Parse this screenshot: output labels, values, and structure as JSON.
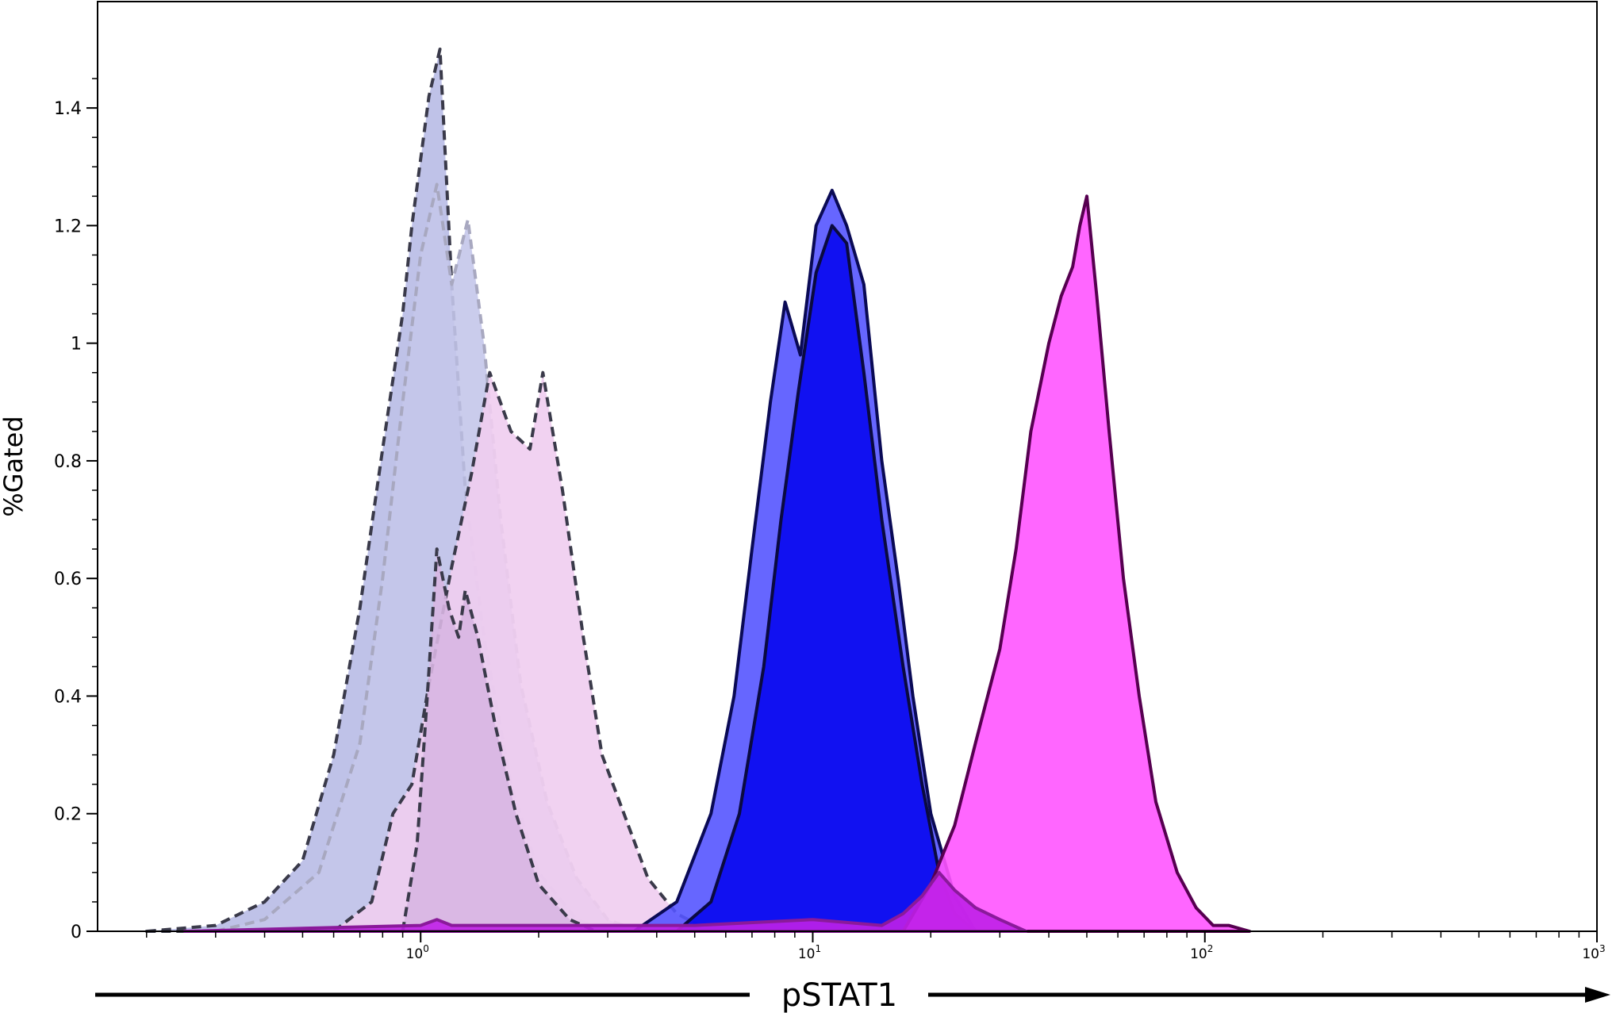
{
  "chart_data": {
    "type": "area",
    "xlabel": "pSTAT1",
    "ylabel": "%Gated",
    "x_scale": "log",
    "xlim": [
      0.15,
      1000
    ],
    "ylim": [
      0,
      1.5
    ],
    "x_ticks": [
      {
        "value": 1,
        "base": "10",
        "exp": "0"
      },
      {
        "value": 10,
        "base": "10",
        "exp": "1"
      },
      {
        "value": 100,
        "base": "10",
        "exp": "2"
      },
      {
        "value": 1000,
        "base": "10",
        "exp": "3"
      }
    ],
    "y_ticks": [
      {
        "value": 0,
        "label": "0"
      },
      {
        "value": 0.2,
        "label": "0.2"
      },
      {
        "value": 0.4,
        "label": "0.4"
      },
      {
        "value": 0.6,
        "label": "0.6"
      },
      {
        "value": 0.8,
        "label": "0.8"
      },
      {
        "value": 1.0,
        "label": "1"
      },
      {
        "value": 1.2,
        "label": "1.2"
      },
      {
        "value": 1.4,
        "label": "1.4"
      }
    ],
    "grid": false,
    "legend": "none",
    "series": [
      {
        "fill": "#b8bbe6",
        "stroke": "#3a3a4a",
        "dashed": true,
        "points": [
          [
            0.2,
            0
          ],
          [
            0.3,
            0.01
          ],
          [
            0.4,
            0.05
          ],
          [
            0.5,
            0.12
          ],
          [
            0.6,
            0.3
          ],
          [
            0.7,
            0.55
          ],
          [
            0.8,
            0.82
          ],
          [
            0.9,
            1.05
          ],
          [
            0.95,
            1.2
          ],
          [
            1.05,
            1.42
          ],
          [
            1.12,
            1.5
          ],
          [
            1.2,
            1.1
          ],
          [
            1.3,
            0.75
          ],
          [
            1.45,
            0.5
          ],
          [
            1.7,
            0.25
          ],
          [
            2.0,
            0.1
          ],
          [
            2.5,
            0.02
          ],
          [
            3.0,
            0
          ]
        ]
      },
      {
        "fill": "#c4c6ea",
        "stroke": "#a8a8c0",
        "dashed": true,
        "points": [
          [
            0.3,
            0
          ],
          [
            0.4,
            0.02
          ],
          [
            0.55,
            0.1
          ],
          [
            0.7,
            0.32
          ],
          [
            0.8,
            0.6
          ],
          [
            0.9,
            0.9
          ],
          [
            1.0,
            1.15
          ],
          [
            1.1,
            1.27
          ],
          [
            1.2,
            1.1
          ],
          [
            1.32,
            1.21
          ],
          [
            1.45,
            1.0
          ],
          [
            1.6,
            0.7
          ],
          [
            1.8,
            0.42
          ],
          [
            2.1,
            0.22
          ],
          [
            2.5,
            0.09
          ],
          [
            3.0,
            0.02
          ],
          [
            3.6,
            0
          ]
        ]
      },
      {
        "fill": "#efcdef",
        "stroke": "#3a3a4a",
        "dashed": true,
        "points": [
          [
            0.6,
            0
          ],
          [
            0.75,
            0.05
          ],
          [
            0.85,
            0.2
          ],
          [
            0.95,
            0.25
          ],
          [
            1.05,
            0.42
          ],
          [
            1.2,
            0.62
          ],
          [
            1.35,
            0.78
          ],
          [
            1.5,
            0.95
          ],
          [
            1.7,
            0.85
          ],
          [
            1.9,
            0.82
          ],
          [
            2.05,
            0.95
          ],
          [
            2.3,
            0.75
          ],
          [
            2.6,
            0.5
          ],
          [
            2.9,
            0.3
          ],
          [
            3.3,
            0.2
          ],
          [
            3.8,
            0.09
          ],
          [
            4.5,
            0.03
          ],
          [
            5.5,
            0
          ]
        ]
      },
      {
        "fill": "#d8b6e2",
        "stroke": "#3a3a4a",
        "dashed": true,
        "points": [
          [
            0.9,
            0
          ],
          [
            0.98,
            0.15
          ],
          [
            1.04,
            0.4
          ],
          [
            1.1,
            0.65
          ],
          [
            1.18,
            0.55
          ],
          [
            1.25,
            0.5
          ],
          [
            1.3,
            0.58
          ],
          [
            1.4,
            0.5
          ],
          [
            1.55,
            0.35
          ],
          [
            1.75,
            0.2
          ],
          [
            2.0,
            0.08
          ],
          [
            2.4,
            0.02
          ],
          [
            2.8,
            0
          ]
        ]
      },
      {
        "fill": "#5555ff",
        "stroke": "#0a0a55",
        "dashed": false,
        "points": [
          [
            3.5,
            0
          ],
          [
            4.5,
            0.05
          ],
          [
            5.5,
            0.2
          ],
          [
            6.3,
            0.4
          ],
          [
            7.0,
            0.65
          ],
          [
            7.8,
            0.9
          ],
          [
            8.5,
            1.07
          ],
          [
            9.3,
            0.98
          ],
          [
            10.2,
            1.2
          ],
          [
            11.2,
            1.26
          ],
          [
            12.2,
            1.2
          ],
          [
            13.5,
            1.1
          ],
          [
            15,
            0.8
          ],
          [
            16.5,
            0.6
          ],
          [
            18,
            0.4
          ],
          [
            20,
            0.2
          ],
          [
            23,
            0.06
          ],
          [
            26,
            0
          ]
        ]
      },
      {
        "fill": "#0808f0",
        "stroke": "#0a0a40",
        "dashed": false,
        "points": [
          [
            4.5,
            0
          ],
          [
            5.5,
            0.05
          ],
          [
            6.5,
            0.2
          ],
          [
            7.5,
            0.45
          ],
          [
            8.3,
            0.7
          ],
          [
            9.2,
            0.92
          ],
          [
            10.2,
            1.12
          ],
          [
            11.2,
            1.2
          ],
          [
            12.2,
            1.17
          ],
          [
            13.5,
            0.95
          ],
          [
            15,
            0.7
          ],
          [
            17,
            0.45
          ],
          [
            19,
            0.25
          ],
          [
            21,
            0.1
          ],
          [
            23,
            0.03
          ],
          [
            26,
            0
          ]
        ]
      },
      {
        "fill": "#ff55ff",
        "stroke": "#560050",
        "dashed": false,
        "points": [
          [
            17,
            0
          ],
          [
            20,
            0.08
          ],
          [
            23,
            0.18
          ],
          [
            26,
            0.32
          ],
          [
            30,
            0.48
          ],
          [
            33,
            0.65
          ],
          [
            36,
            0.85
          ],
          [
            40,
            1.0
          ],
          [
            43,
            1.08
          ],
          [
            46,
            1.13
          ],
          [
            48,
            1.2
          ],
          [
            50,
            1.25
          ],
          [
            53,
            1.08
          ],
          [
            57,
            0.85
          ],
          [
            62,
            0.6
          ],
          [
            68,
            0.4
          ],
          [
            75,
            0.22
          ],
          [
            85,
            0.1
          ],
          [
            95,
            0.04
          ],
          [
            105,
            0.01
          ],
          [
            115,
            0.01
          ],
          [
            130,
            0
          ]
        ]
      },
      {
        "fill": "#c020e8",
        "stroke": "#8a1a9a",
        "dashed": false,
        "points": [
          [
            0.25,
            0
          ],
          [
            1.0,
            0.01
          ],
          [
            1.1,
            0.02
          ],
          [
            1.2,
            0.01
          ],
          [
            5.0,
            0.01
          ],
          [
            10,
            0.02
          ],
          [
            15,
            0.01
          ],
          [
            17,
            0.03
          ],
          [
            19,
            0.06
          ],
          [
            21,
            0.1
          ],
          [
            23,
            0.07
          ],
          [
            26,
            0.04
          ],
          [
            30,
            0.02
          ],
          [
            35,
            0
          ]
        ]
      }
    ]
  }
}
